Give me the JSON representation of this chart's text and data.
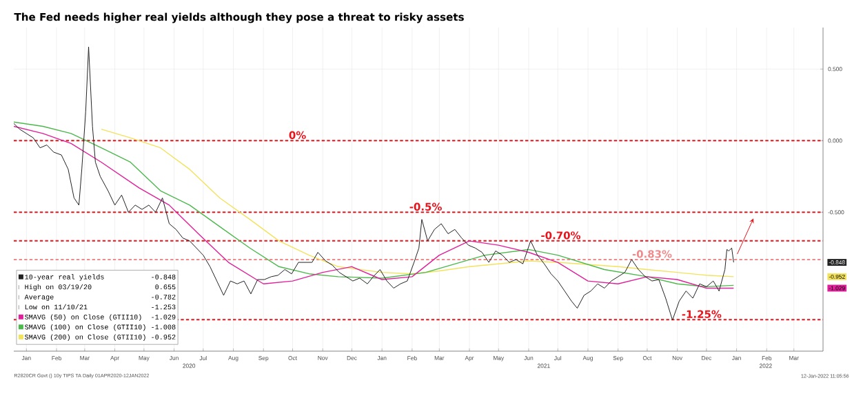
{
  "chart_data": {
    "type": "line",
    "title": "The Fed needs higher real yields although they pose a threat to risky assets",
    "xlim": [
      "2020-01-02",
      "2022-04-14"
    ],
    "ylim": [
      -1.47,
      0.79
    ],
    "xticks": [
      {
        "value": "2020-01-15",
        "label": "Jan"
      },
      {
        "value": "2020-02-15",
        "label": "Feb"
      },
      {
        "value": "2020-03-15",
        "label": "Mar"
      },
      {
        "value": "2020-04-15",
        "label": "Apr"
      },
      {
        "value": "2020-05-15",
        "label": "May"
      },
      {
        "value": "2020-06-15",
        "label": "Jun"
      },
      {
        "value": "2020-07-15",
        "label": "Jul"
      },
      {
        "value": "2020-08-15",
        "label": "Aug"
      },
      {
        "value": "2020-09-15",
        "label": "Sep"
      },
      {
        "value": "2020-10-15",
        "label": "Oct"
      },
      {
        "value": "2020-11-15",
        "label": "Nov"
      },
      {
        "value": "2020-12-15",
        "label": "Dec"
      },
      {
        "value": "2021-01-15",
        "label": "Jan"
      },
      {
        "value": "2021-02-15",
        "label": "Feb"
      },
      {
        "value": "2021-03-15",
        "label": "Mar"
      },
      {
        "value": "2021-04-15",
        "label": "Apr"
      },
      {
        "value": "2021-05-15",
        "label": "May"
      },
      {
        "value": "2021-06-15",
        "label": "Jun"
      },
      {
        "value": "2021-07-15",
        "label": "Jul"
      },
      {
        "value": "2021-08-15",
        "label": "Aug"
      },
      {
        "value": "2021-09-15",
        "label": "Sep"
      },
      {
        "value": "2021-10-15",
        "label": "Oct"
      },
      {
        "value": "2021-11-15",
        "label": "Nov"
      },
      {
        "value": "2021-12-15",
        "label": "Dec"
      },
      {
        "value": "2022-01-15",
        "label": "Jan"
      },
      {
        "value": "2022-02-15",
        "label": "Feb"
      },
      {
        "value": "2022-03-15",
        "label": "Mar"
      }
    ],
    "yticks": [
      {
        "value": 0.5,
        "label": "0.500"
      },
      {
        "value": 0,
        "label": "0.000"
      },
      {
        "value": -0.5,
        "label": "-0.500"
      }
    ],
    "grid": true,
    "legend": "bottom left",
    "marker": "none",
    "line_style": "solid",
    "series": [
      {
        "name": "10-year real yields",
        "color": "#222222",
        "x": [
          "2020-01-02",
          "2020-01-08",
          "2020-01-15",
          "2020-01-22",
          "2020-01-29",
          "2020-02-05",
          "2020-02-12",
          "2020-02-20",
          "2020-02-27",
          "2020-03-04",
          "2020-03-09",
          "2020-03-12",
          "2020-03-16",
          "2020-03-19",
          "2020-03-23",
          "2020-03-26",
          "2020-03-31",
          "2020-04-08",
          "2020-04-15",
          "2020-04-22",
          "2020-04-29",
          "2020-05-06",
          "2020-05-13",
          "2020-05-20",
          "2020-05-27",
          "2020-06-03",
          "2020-06-10",
          "2020-06-17",
          "2020-06-24",
          "2020-07-01",
          "2020-07-08",
          "2020-07-15",
          "2020-07-22",
          "2020-07-29",
          "2020-08-05",
          "2020-08-12",
          "2020-08-19",
          "2020-08-26",
          "2020-09-02",
          "2020-09-09",
          "2020-09-16",
          "2020-09-23",
          "2020-09-30",
          "2020-10-07",
          "2020-10-14",
          "2020-10-21",
          "2020-10-28",
          "2020-11-04",
          "2020-11-10",
          "2020-11-18",
          "2020-11-25",
          "2020-12-02",
          "2020-12-09",
          "2020-12-16",
          "2020-12-23",
          "2020-12-31",
          "2021-01-06",
          "2021-01-13",
          "2021-01-20",
          "2021-01-27",
          "2021-02-03",
          "2021-02-10",
          "2021-02-17",
          "2021-02-22",
          "2021-02-25",
          "2021-03-03",
          "2021-03-10",
          "2021-03-17",
          "2021-03-24",
          "2021-03-31",
          "2021-04-07",
          "2021-04-14",
          "2021-04-21",
          "2021-04-28",
          "2021-05-05",
          "2021-05-12",
          "2021-05-19",
          "2021-05-26",
          "2021-06-02",
          "2021-06-09",
          "2021-06-17",
          "2021-06-24",
          "2021-07-01",
          "2021-07-08",
          "2021-07-15",
          "2021-07-22",
          "2021-07-29",
          "2021-08-04",
          "2021-08-11",
          "2021-08-18",
          "2021-08-25",
          "2021-09-01",
          "2021-09-08",
          "2021-09-15",
          "2021-09-22",
          "2021-09-29",
          "2021-10-06",
          "2021-10-13",
          "2021-10-20",
          "2021-10-27",
          "2021-11-03",
          "2021-11-10",
          "2021-11-17",
          "2021-11-24",
          "2021-12-01",
          "2021-12-08",
          "2021-12-15",
          "2021-12-22",
          "2021-12-28",
          "2022-01-03",
          "2022-01-05",
          "2022-01-07",
          "2022-01-10",
          "2022-01-11",
          "2022-01-12"
        ],
        "values": [
          0.12,
          0.08,
          0.05,
          0.02,
          -0.05,
          -0.03,
          -0.08,
          -0.1,
          -0.2,
          -0.4,
          -0.45,
          -0.2,
          0.2,
          0.655,
          0.1,
          -0.15,
          -0.25,
          -0.35,
          -0.45,
          -0.38,
          -0.5,
          -0.45,
          -0.48,
          -0.45,
          -0.5,
          -0.4,
          -0.58,
          -0.62,
          -0.68,
          -0.7,
          -0.75,
          -0.8,
          -0.88,
          -0.98,
          -1.08,
          -0.98,
          -1.0,
          -0.98,
          -1.07,
          -0.97,
          -0.97,
          -0.95,
          -0.94,
          -0.9,
          -0.93,
          -0.85,
          -0.85,
          -0.85,
          -0.78,
          -0.84,
          -0.87,
          -0.92,
          -0.95,
          -0.98,
          -0.96,
          -1.0,
          -0.95,
          -0.9,
          -0.98,
          -1.03,
          -1.0,
          -0.98,
          -0.85,
          -0.75,
          -0.55,
          -0.7,
          -0.62,
          -0.58,
          -0.65,
          -0.62,
          -0.68,
          -0.73,
          -0.75,
          -0.78,
          -0.85,
          -0.77,
          -0.8,
          -0.85,
          -0.83,
          -0.86,
          -0.7,
          -0.8,
          -0.86,
          -0.93,
          -0.98,
          -1.05,
          -1.12,
          -1.17,
          -1.08,
          -1.05,
          -1.0,
          -1.03,
          -0.98,
          -0.95,
          -0.92,
          -0.83,
          -0.9,
          -0.95,
          -0.98,
          -0.97,
          -1.1,
          -1.253,
          -1.12,
          -1.05,
          -1.1,
          -1.0,
          -1.02,
          -0.98,
          -1.05,
          -0.9,
          -0.76,
          -0.77,
          -0.75,
          -0.8,
          -0.85
        ]
      },
      {
        "name": "SMAVG (50)  on Close (GTII10)",
        "color": "#e0209a",
        "x": [
          "2020-01-02",
          "2020-02-01",
          "2020-03-01",
          "2020-04-01",
          "2020-05-10",
          "2020-06-10",
          "2020-07-10",
          "2020-08-10",
          "2020-09-15",
          "2020-10-15",
          "2020-11-15",
          "2020-12-15",
          "2021-01-15",
          "2021-02-15",
          "2021-03-15",
          "2021-04-15",
          "2021-05-15",
          "2021-06-15",
          "2021-07-15",
          "2021-08-15",
          "2021-09-15",
          "2021-10-15",
          "2021-11-15",
          "2021-12-15",
          "2022-01-12"
        ],
        "values": [
          0.1,
          0.05,
          -0.02,
          -0.15,
          -0.33,
          -0.45,
          -0.65,
          -0.85,
          -1.0,
          -0.98,
          -0.92,
          -0.88,
          -0.97,
          -0.95,
          -0.8,
          -0.7,
          -0.73,
          -0.78,
          -0.85,
          -0.98,
          -1.0,
          -0.95,
          -0.97,
          -1.03,
          -1.03
        ]
      },
      {
        "name": "SMAVG (100)  on Close (GTII10)",
        "color": "#4cb84c",
        "x": [
          "2020-01-02",
          "2020-02-01",
          "2020-03-01",
          "2020-04-01",
          "2020-05-01",
          "2020-06-01",
          "2020-07-01",
          "2020-08-01",
          "2020-09-01",
          "2020-10-01",
          "2020-11-01",
          "2020-12-01",
          "2021-01-15",
          "2021-03-01",
          "2021-05-01",
          "2021-06-15",
          "2021-07-15",
          "2021-09-01",
          "2021-10-15",
          "2021-11-15",
          "2021-12-15",
          "2022-01-12"
        ],
        "values": [
          0.13,
          0.1,
          0.05,
          -0.05,
          -0.15,
          -0.35,
          -0.45,
          -0.6,
          -0.75,
          -0.88,
          -0.93,
          -0.95,
          -0.96,
          -0.92,
          -0.8,
          -0.76,
          -0.8,
          -0.9,
          -0.95,
          -1.0,
          -1.02,
          -1.01
        ]
      },
      {
        "name": "SMAVG (200)  on Close (GTII10)",
        "color": "#f2e25c",
        "x": [
          "2020-04-01",
          "2020-05-01",
          "2020-06-01",
          "2020-07-01",
          "2020-08-01",
          "2020-09-01",
          "2020-10-01",
          "2020-11-01",
          "2020-12-01",
          "2021-01-15",
          "2021-02-15",
          "2021-03-15",
          "2021-04-15",
          "2021-06-15",
          "2021-07-15",
          "2021-09-15",
          "2021-10-15",
          "2021-11-15",
          "2021-12-15",
          "2022-01-12"
        ],
        "values": [
          0.08,
          0.02,
          -0.05,
          -0.2,
          -0.4,
          -0.55,
          -0.7,
          -0.8,
          -0.88,
          -0.92,
          -0.93,
          -0.91,
          -0.88,
          -0.84,
          -0.85,
          -0.88,
          -0.9,
          -0.92,
          -0.94,
          -0.95
        ]
      }
    ],
    "ref_lines": [
      {
        "axis": "y",
        "value": 0,
        "color": "#e8141c",
        "line_style": "dashed"
      },
      {
        "axis": "y",
        "value": -0.5,
        "color": "#e8141c",
        "line_style": "dashed"
      },
      {
        "axis": "y",
        "value": -0.7,
        "color": "#e8141c",
        "line_style": "dashed"
      },
      {
        "axis": "y",
        "value": -0.83,
        "color": "#f08a8a",
        "line_style": "dashed"
      },
      {
        "axis": "y",
        "value": -1.25,
        "color": "#e8141c",
        "line_style": "dashed"
      }
    ],
    "annotations": [
      {
        "text": "0%",
        "x": "2020-10-20",
        "y": 0
      },
      {
        "text": "-0.5%",
        "x": "2021-03-01",
        "y": -0.5
      },
      {
        "text": "-0.70%",
        "x": "2021-07-18",
        "y": -0.7
      },
      {
        "text": "-0.83%",
        "x": "2021-10-20",
        "y": -0.83
      },
      {
        "text": "-1.25%",
        "x": "2021-12-10",
        "y": -1.25
      },
      "2020",
      "2021",
      "2022",
      "-0.848",
      "-0.952",
      "-1.029",
      "-0.848",
      "High on 03/19/20",
      "0.655",
      "Average",
      "-0.782",
      "Low on 11/10/21",
      "-1.253",
      "-1.029",
      "-1.008",
      "-0.952",
      "R2820CR Govt (} 10y TIPS TA  Daily 01APR2020-12JAN2022",
      "12-Jan-2022 11:05:56"
    ]
  }
}
